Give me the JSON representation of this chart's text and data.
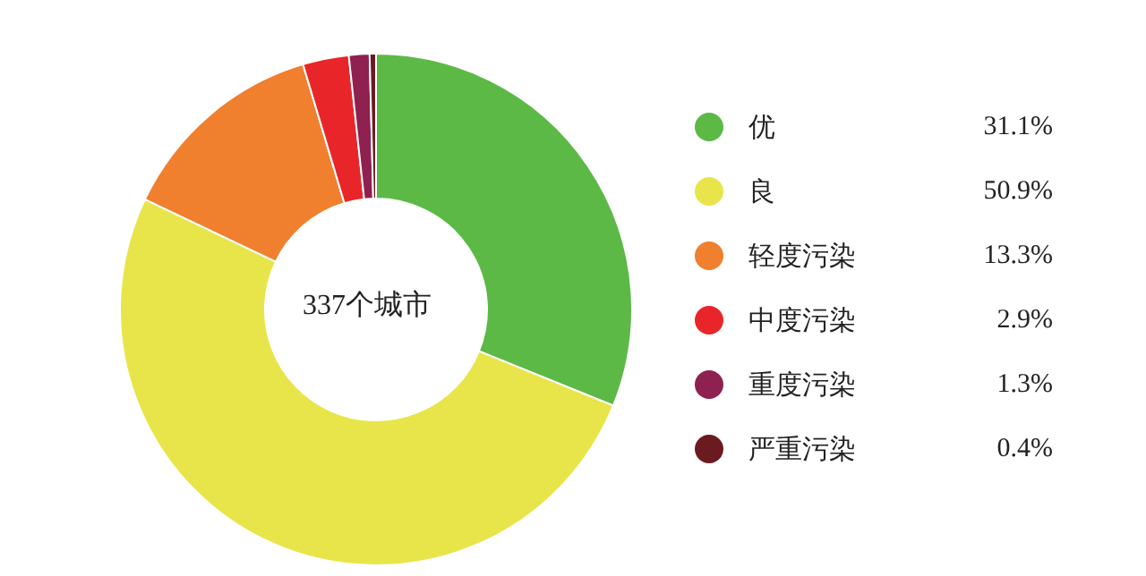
{
  "chart_data": {
    "type": "donut",
    "categories": [
      "优",
      "良",
      "轻度污染",
      "中度污染",
      "重度污染",
      "严重污染"
    ],
    "values": [
      31.1,
      50.9,
      13.3,
      2.9,
      1.3,
      0.4
    ],
    "colors": [
      "#5cb946",
      "#e8e54a",
      "#f07f2e",
      "#e8262a",
      "#8e2150",
      "#6b1a20"
    ],
    "value_labels": [
      "31.1%",
      "50.9%",
      "13.3%",
      "2.9%",
      "1.3%",
      "0.4%"
    ],
    "annotations": [
      "337个城市"
    ],
    "legend": "right"
  }
}
